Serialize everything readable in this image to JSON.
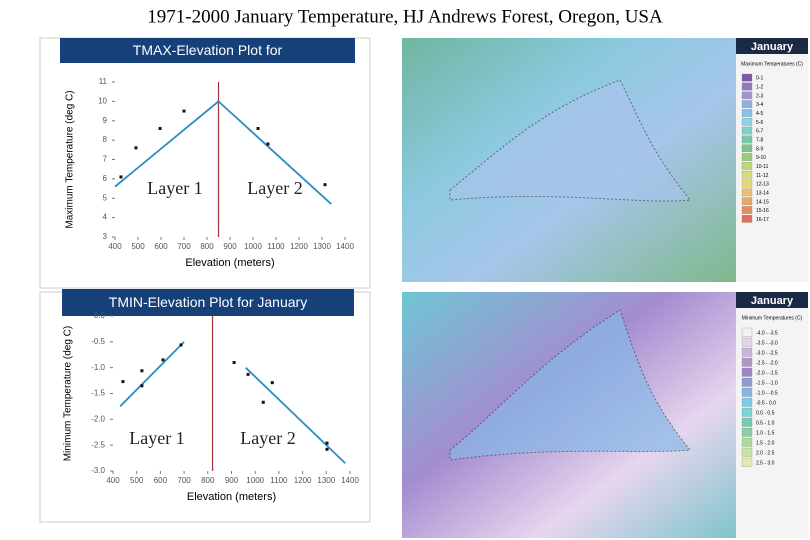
{
  "title": "1971-2000 January Temperature, HJ Andrews Forest, Oregon, USA",
  "chart_data": [
    {
      "type": "scatter",
      "title": "TMAX-Elevation Plot for",
      "x_label": "Elevation (meters)",
      "y_label": "Maximum Temperature (deg C)",
      "x": [
        426,
        491,
        596,
        700,
        1022,
        1065,
        1313
      ],
      "values": [
        6.1,
        7.6,
        8.6,
        9.5,
        8.6,
        7.8,
        5.7
      ],
      "color": "#111111",
      "line_color": "#2b8cc4",
      "divider_color": "#a0303c",
      "xlim": [
        400,
        1400
      ],
      "xticks": [
        400,
        500,
        600,
        700,
        800,
        900,
        1000,
        1100,
        1200,
        1300,
        1400
      ],
      "ylim": [
        3,
        11
      ],
      "yticks": [
        3,
        4,
        5,
        6,
        7,
        8,
        9,
        10,
        11
      ],
      "trend_lines": [
        {
          "x": [
            400,
            850
          ],
          "y": [
            5.6,
            10.0
          ]
        },
        {
          "x": [
            850,
            1340
          ],
          "y": [
            10.0,
            4.7
          ]
        }
      ],
      "divider_x": 850,
      "annotations": [
        "Layer 1",
        "Layer 2"
      ]
    },
    {
      "type": "scatter",
      "title": "TMIN-Elevation Plot for January",
      "x_label": "Elevation (meters)",
      "y_label": "Minimum Temperature (deg C)",
      "x": [
        442,
        522,
        522,
        611,
        687,
        911,
        970,
        1034,
        1072,
        1303,
        1303
      ],
      "values": [
        -1.27,
        -1.06,
        -1.35,
        -0.85,
        -0.56,
        -0.9,
        -1.13,
        -1.67,
        -1.29,
        -2.46,
        -2.58
      ],
      "color": "#111111",
      "line_color": "#2b8cc4",
      "divider_color": "#a0303c",
      "xlim": [
        400,
        1400
      ],
      "xticks": [
        400,
        500,
        600,
        700,
        800,
        900,
        1000,
        1100,
        1200,
        1300,
        1400
      ],
      "ylim": [
        -3,
        0
      ],
      "yticks": [
        {
          "value": -3,
          "label": "-3.0"
        },
        -2.5,
        {
          "value": -2,
          "label": "-2.0"
        },
        -1.5,
        {
          "value": -1,
          "label": "-1.0"
        },
        -0.5,
        {
          "value": 0,
          "label": "0.0"
        }
      ],
      "trend_lines": [
        {
          "x": [
            430,
            700
          ],
          "y": [
            -1.75,
            -0.5
          ]
        },
        {
          "x": [
            960,
            1380
          ],
          "y": [
            -1.0,
            -2.85
          ]
        }
      ],
      "divider_x": 820,
      "annotations": [
        "Layer 1",
        "Layer 2"
      ]
    }
  ],
  "maps": [
    {
      "title": "January",
      "legend_title": "Maximum Temperatures (C)",
      "legend_items": [
        "0-1",
        "1-2",
        "2-3",
        "3-4",
        "4-5",
        "5-6",
        "6-7",
        "7-8",
        "8-9",
        "9-10",
        "10-11",
        "11-12",
        "12-13",
        "13-14",
        "14-15",
        "15-16",
        "16-17"
      ],
      "legend_colors": [
        "#7a5aa8",
        "#8f78c0",
        "#9d95d0",
        "#8fb0dc",
        "#86c3e6",
        "#8fd3e8",
        "#80cfc8",
        "#78c7a8",
        "#7fc48a",
        "#9ccc78",
        "#bcd872",
        "#d6de78",
        "#e6d878",
        "#ecc070",
        "#eaa868",
        "#e68c60",
        "#e06e58"
      ]
    },
    {
      "title": "January",
      "legend_title": "Minimum Temperatures (C)",
      "legend_items": [
        "-4.0 - -3.5",
        "-3.5 - -3.0",
        "-3.0 - -2.5",
        "-2.5 - -2.0",
        "-2.0 - -1.5",
        "-1.5 - -1.0",
        "-1.0 - -0.5",
        "-0.5 - 0.0",
        "0.0 - 0.5",
        "0.5 - 1.0",
        "1.0 - 1.5",
        "1.5 - 2.0",
        "2.0 - 2.5",
        "2.5 - 3.0"
      ],
      "legend_colors": [
        "#f4eef6",
        "#e4d4ec",
        "#cdb4dc",
        "#b394cc",
        "#9c86c8",
        "#8e9ad4",
        "#86b4e0",
        "#80cce8",
        "#78d4d8",
        "#74ccb4",
        "#88d0a0",
        "#a8dc98",
        "#c8e4a0",
        "#e2eab0"
      ]
    }
  ]
}
